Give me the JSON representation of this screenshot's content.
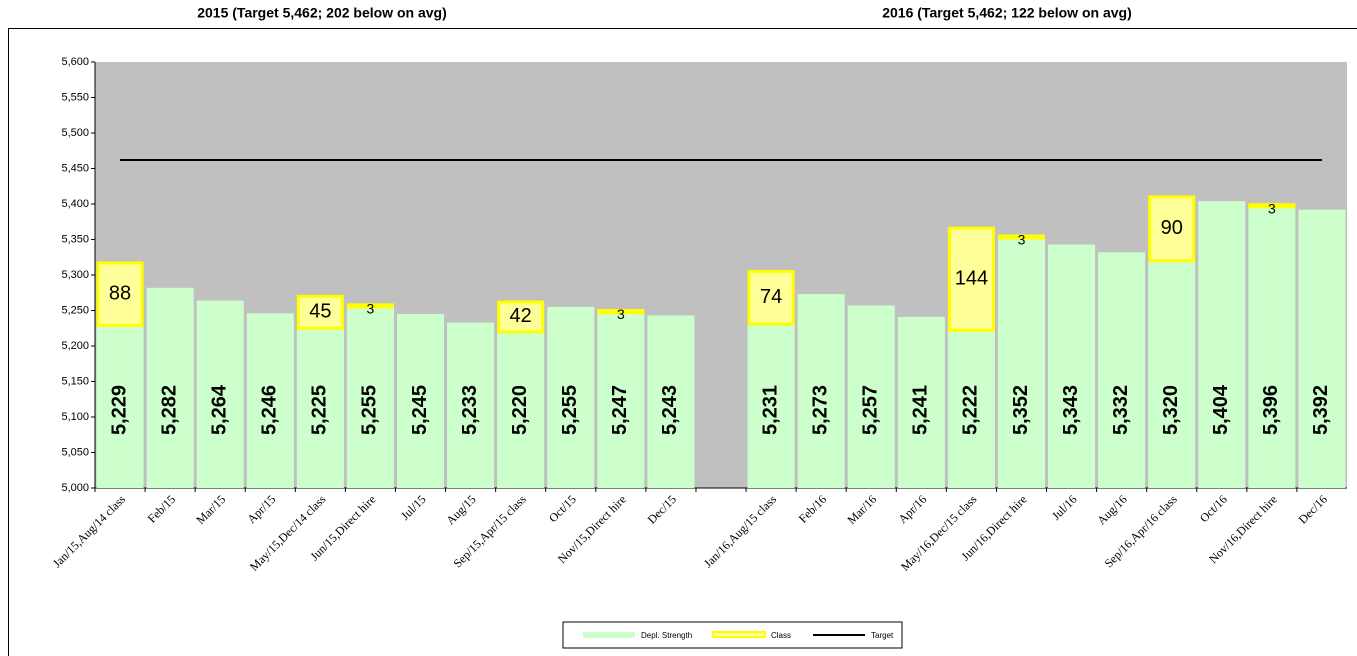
{
  "chart_data": {
    "type": "bar",
    "titles": [
      "2015 (Target 5,462; 202 below on avg)",
      "2016 (Target 5,462; 122 below on avg)"
    ],
    "categories": [
      "Jan/15,Aug/14 class",
      "Feb/15",
      "Mar/15",
      "Apr/15",
      "May/15,Dec/14 class",
      "Jun/15,Direct hire",
      "Jul/15",
      "Aug/15",
      "Sep/15,Apr/15 class",
      "Oct/15",
      "Nov/15,Direct hire",
      "Dec/15",
      null,
      "Jan/16,Aug/15 class",
      "Feb/16",
      "Mar/16",
      "Apr/16",
      "May/16,Dec/15 class",
      "Jun/16,Direct hire",
      "Jul/16",
      "Aug/16",
      "Sep/16,Apr/16 class",
      "Oct/16",
      "Nov/16,Direct hire",
      "Dec/16"
    ],
    "series": [
      {
        "name": "Depl. Strength",
        "color": "#ccffcc",
        "values": [
          5229,
          5282,
          5264,
          5246,
          5225,
          5255,
          5245,
          5233,
          5220,
          5255,
          5247,
          5243,
          null,
          5231,
          5273,
          5257,
          5241,
          5222,
          5352,
          5343,
          5332,
          5320,
          5404,
          5396,
          5392
        ],
        "value_labels": [
          "5,229",
          "5,282",
          "5,264",
          "5,246",
          "5,225",
          "5,255",
          "5,245",
          "5,233",
          "5,220",
          "5,255",
          "5,247",
          "5,243",
          null,
          "5,231",
          "5,273",
          "5,257",
          "5,241",
          "5,222",
          "5,352",
          "5,343",
          "5,332",
          "5,320",
          "5,404",
          "5,396",
          "5,392"
        ]
      },
      {
        "name": "Class",
        "color": "#ffff99",
        "stroke": "#ffff00",
        "values": [
          88,
          null,
          null,
          null,
          45,
          3,
          null,
          null,
          42,
          null,
          3,
          null,
          null,
          74,
          null,
          null,
          null,
          144,
          3,
          null,
          null,
          90,
          null,
          3,
          null
        ]
      },
      {
        "name": "Target",
        "color": "#000000",
        "values": [
          5462,
          5462,
          5462,
          5462,
          5462,
          5462,
          5462,
          5462,
          5462,
          5462,
          5462,
          5462,
          5462,
          5462,
          5462,
          5462,
          5462,
          5462,
          5462,
          5462,
          5462,
          5462,
          5462,
          5462,
          5462
        ]
      }
    ],
    "ylim": [
      5000,
      5600
    ],
    "yticks": [
      {
        "value": 5000,
        "label": "5,000"
      },
      {
        "value": 5050,
        "label": "5,050"
      },
      {
        "value": 5100,
        "label": "5,100"
      },
      {
        "value": 5150,
        "label": "5,150"
      },
      {
        "value": 5200,
        "label": "5,200"
      },
      {
        "value": 5250,
        "label": "5,250"
      },
      {
        "value": 5300,
        "label": "5,300"
      },
      {
        "value": 5350,
        "label": "5,350"
      },
      {
        "value": 5400,
        "label": "5,400"
      },
      {
        "value": 5450,
        "label": "5,450"
      },
      {
        "value": 5500,
        "label": "5,500"
      },
      {
        "value": 5550,
        "label": "5,550"
      },
      {
        "value": 5600,
        "label": "5,600"
      }
    ],
    "plot_background": "#c0c0c0"
  }
}
